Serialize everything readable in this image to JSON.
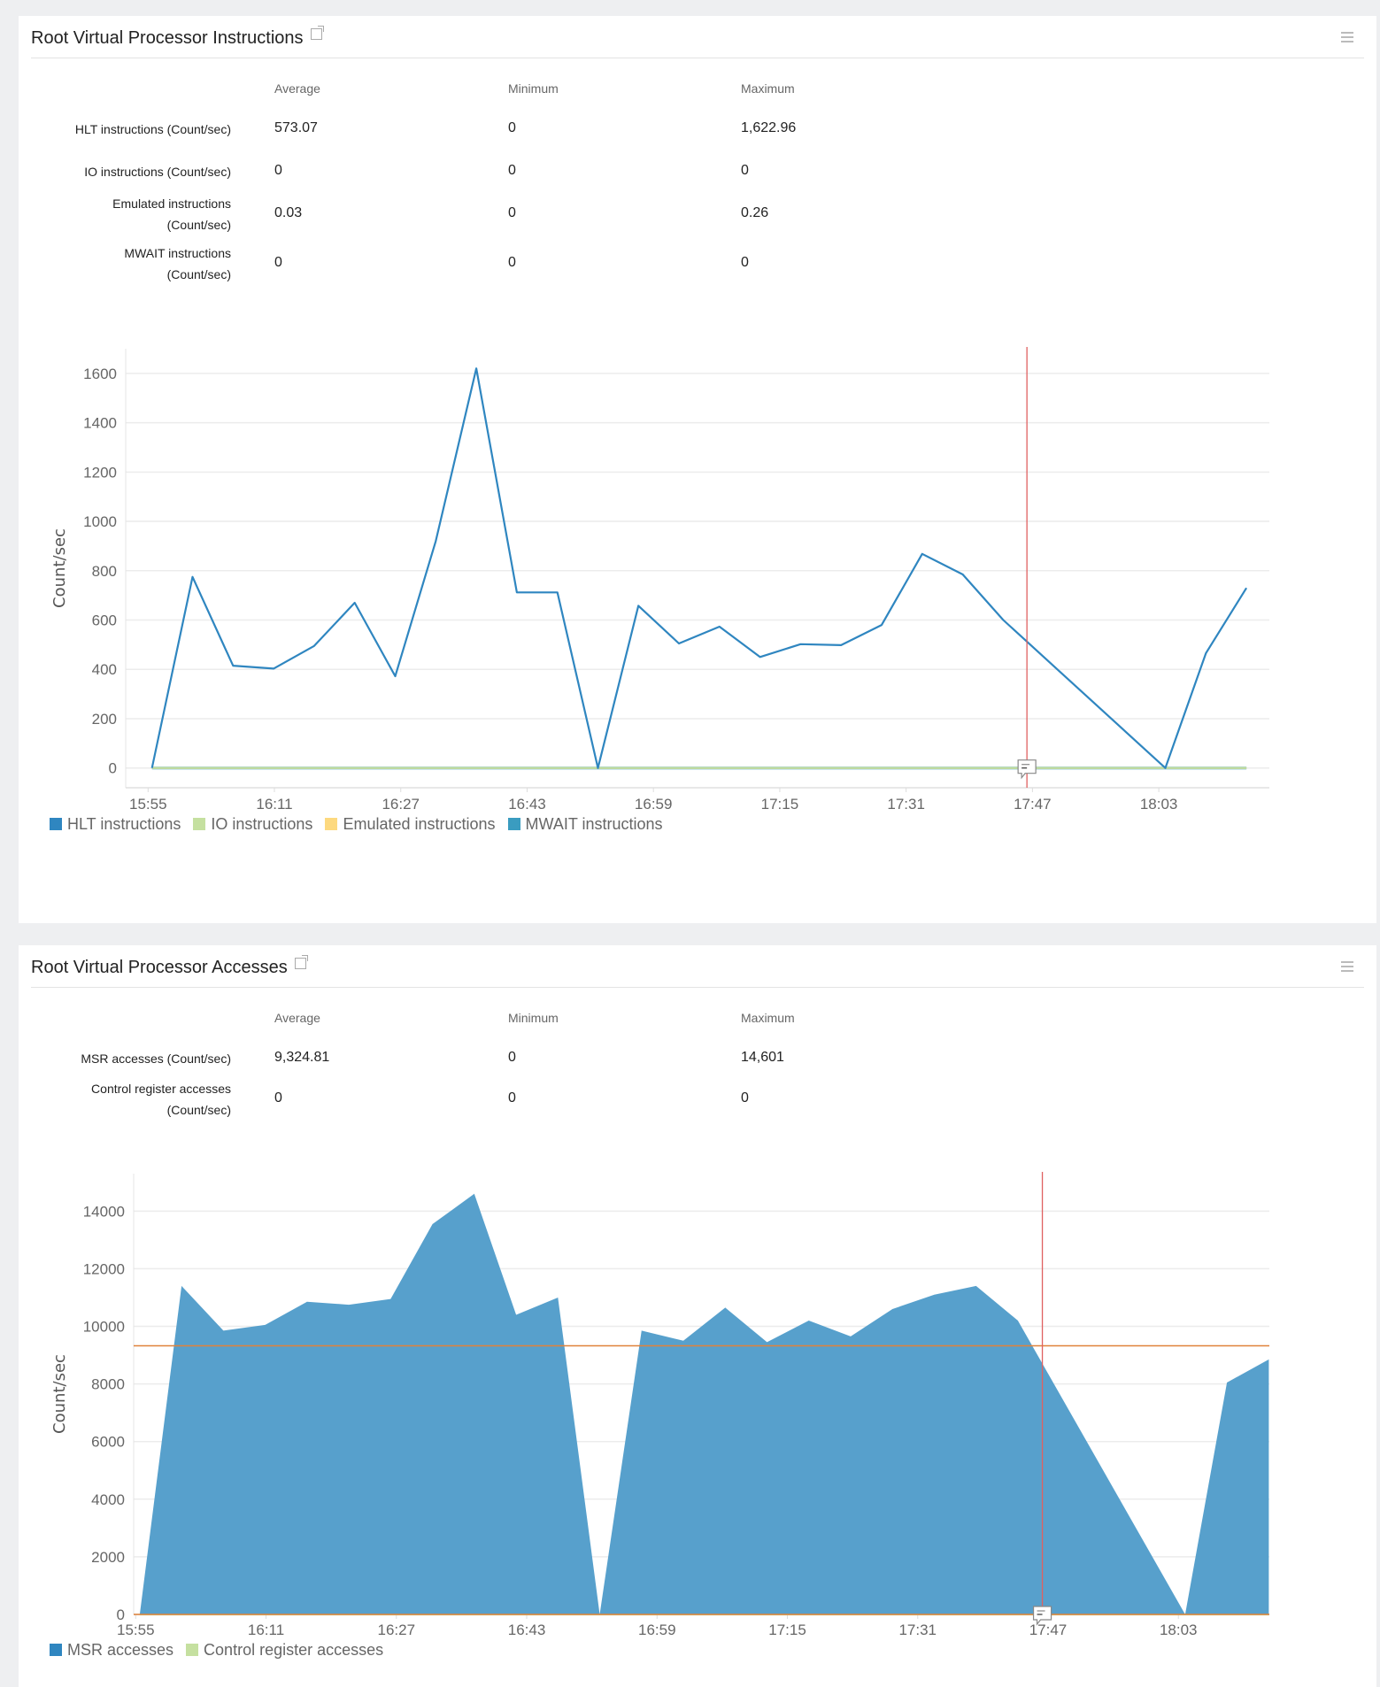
{
  "panels": [
    {
      "title": "Root Virtual Processor Instructions",
      "columns": [
        "Average",
        "Minimum",
        "Maximum"
      ],
      "rows": [
        {
          "label": [
            "HLT instructions (Count/sec)"
          ],
          "average": "573.07",
          "minimum": "0",
          "maximum": "1,622.96"
        },
        {
          "label": [
            "IO instructions (Count/sec)"
          ],
          "average": "0",
          "minimum": "0",
          "maximum": "0"
        },
        {
          "label": [
            "Emulated instructions",
            "(Count/sec)"
          ],
          "average": "0.03",
          "minimum": "0",
          "maximum": "0.26"
        },
        {
          "label": [
            "MWAIT instructions",
            "(Count/sec)"
          ],
          "average": "0",
          "minimum": "0",
          "maximum": "0"
        }
      ]
    },
    {
      "title": "Root Virtual Processor Accesses",
      "columns": [
        "Average",
        "Minimum",
        "Maximum"
      ],
      "rows": [
        {
          "label": [
            "MSR accesses (Count/sec)"
          ],
          "average": "9,324.81",
          "minimum": "0",
          "maximum": "14,601"
        },
        {
          "label": [
            "Control register accesses",
            "(Count/sec)"
          ],
          "average": "0",
          "minimum": "0",
          "maximum": "0"
        }
      ]
    }
  ],
  "chart_data": [
    {
      "type": "line",
      "ylabel": "Count/sec",
      "xlim": [
        "15:52:10",
        "18:17:00"
      ],
      "ylim": [
        -80,
        1700
      ],
      "yticks": [
        0,
        200,
        400,
        600,
        800,
        1000,
        1200,
        1400,
        1600
      ],
      "xticks": [
        "15:55",
        "16:11",
        "16:27",
        "16:43",
        "16:59",
        "17:15",
        "17:31",
        "17:47",
        "18:03"
      ],
      "grid": true,
      "legend": "bottom-left",
      "cursor_time": "17:46:18",
      "x": [
        "15:55:30",
        "16:00:38",
        "16:05:46",
        "16:10:54",
        "16:16:02",
        "16:21:10",
        "16:26:18",
        "16:31:26",
        "16:36:34",
        "16:41:42",
        "16:46:50",
        "16:51:58",
        "16:57:06",
        "17:02:14",
        "17:07:22",
        "17:12:30",
        "17:17:38",
        "17:22:46",
        "17:27:54",
        "17:33:02",
        "17:38:10",
        "17:43:18",
        "17:48:26",
        "17:53:34",
        "17:58:42",
        "18:03:50",
        "18:08:58",
        "18:14:06"
      ],
      "series": [
        {
          "name": "HLT instructions",
          "color": "#2f86c0",
          "values": [
            0,
            775,
            415,
            403,
            495,
            670,
            372,
            920,
            1620,
            712,
            712,
            0,
            658,
            505,
            573,
            450,
            502,
            498,
            580,
            868,
            785,
            600,
            null,
            null,
            null,
            0,
            465,
            730
          ]
        },
        {
          "name": "IO instructions",
          "color": "#c5e0a0",
          "values": [
            0,
            0,
            0,
            0,
            0,
            0,
            0,
            0,
            0,
            0,
            0,
            0,
            0,
            0,
            0,
            0,
            0,
            0,
            0,
            0,
            0,
            0,
            null,
            null,
            null,
            0,
            0,
            0
          ]
        },
        {
          "name": "Emulated instructions",
          "color": "#fdd97f",
          "values": [
            0,
            0,
            0,
            0,
            0,
            0,
            0,
            0,
            0,
            0,
            0,
            0,
            0,
            0,
            0,
            0,
            0,
            0,
            0,
            0,
            0,
            0,
            null,
            null,
            null,
            0,
            0,
            0
          ]
        },
        {
          "name": "MWAIT instructions",
          "color": "#3a9cc0",
          "values": [
            0,
            0,
            0,
            0,
            0,
            0,
            0,
            0,
            0,
            0,
            0,
            0,
            0,
            0,
            0,
            0,
            0,
            0,
            0,
            0,
            0,
            0,
            null,
            null,
            null,
            0,
            0,
            0
          ]
        }
      ],
      "cursor_color": "#e06060"
    },
    {
      "type": "area",
      "ylabel": "Count/sec",
      "xlim": [
        "15:54:45",
        "18:14:10"
      ],
      "ylim": [
        0,
        15300
      ],
      "yticks": [
        0,
        2000,
        4000,
        6000,
        8000,
        10000,
        12000,
        14000
      ],
      "xticks": [
        "15:55",
        "16:11",
        "16:27",
        "16:43",
        "16:59",
        "17:15",
        "17:31",
        "17:47",
        "18:03"
      ],
      "grid": true,
      "legend": "bottom-left",
      "cursor_time": "17:46:18",
      "average_line": 9324.81,
      "average_color": "#e0823a",
      "x": [
        "15:55:30",
        "16:00:38",
        "16:05:46",
        "16:10:54",
        "16:16:02",
        "16:21:10",
        "16:26:18",
        "16:31:26",
        "16:36:34",
        "16:41:42",
        "16:46:50",
        "16:51:58",
        "16:57:06",
        "17:02:14",
        "17:07:22",
        "17:12:30",
        "17:17:38",
        "17:22:46",
        "17:27:54",
        "17:33:02",
        "17:38:10",
        "17:43:18",
        "17:48:26",
        "17:53:34",
        "17:58:42",
        "18:03:50",
        "18:08:58",
        "18:14:06"
      ],
      "series": [
        {
          "name": "MSR accesses",
          "color": "#2f86c0",
          "fill": "#57a0cc",
          "values": [
            0,
            11400,
            9850,
            10050,
            10850,
            10750,
            10950,
            13550,
            14601,
            10400,
            11000,
            0,
            9850,
            9500,
            10650,
            9450,
            10200,
            9650,
            10600,
            11100,
            11400,
            10200,
            null,
            null,
            null,
            0,
            8050,
            8850
          ]
        },
        {
          "name": "Control register accesses",
          "color": "#c5e0a0",
          "values": [
            0,
            0,
            0,
            0,
            0,
            0,
            0,
            0,
            0,
            0,
            0,
            0,
            0,
            0,
            0,
            0,
            0,
            0,
            0,
            0,
            0,
            0,
            null,
            null,
            null,
            0,
            0,
            0
          ]
        }
      ],
      "cursor_color": "#e06060"
    }
  ]
}
